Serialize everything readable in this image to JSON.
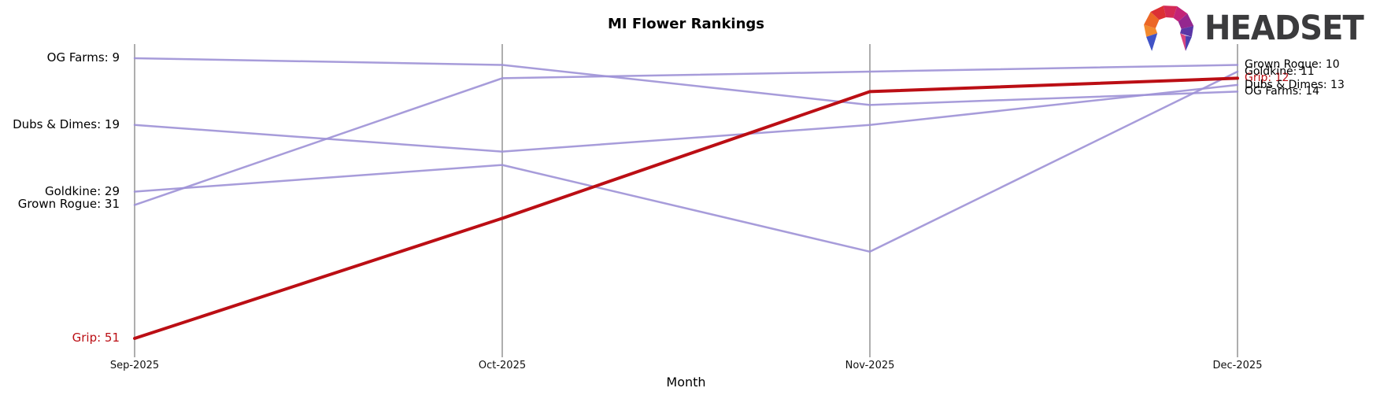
{
  "header": {
    "title": "MI Flower Rankings",
    "xlabel": "Month"
  },
  "logo": {
    "text": "HEADSET"
  },
  "colors": {
    "purple_line": "#9d91d6",
    "highlight_red": "#bb0e14",
    "axis_gray": "#aeaeae",
    "text_black": "#000000",
    "logo_text_gray": "#3b3b3d"
  },
  "chart_data": {
    "type": "line",
    "subtype": "bump-ranking",
    "title": "MI Flower Rankings",
    "xlabel": "Month",
    "categories": [
      "Sep-2025",
      "Oct-2025",
      "Nov-2025",
      "Dec-2025"
    ],
    "y_axis_meaning": "sales rank, lower number = higher position (axis inverted, no y ticks drawn)",
    "ylim": [
      9,
      51
    ],
    "grid": "vertical month spines only",
    "legend_position": "inline endpoint labels",
    "series": [
      {
        "name": "OG Farms",
        "values": [
          9,
          10,
          16,
          14
        ],
        "color": "#9d91d6",
        "highlight": false
      },
      {
        "name": "Dubs & Dimes",
        "values": [
          19,
          23,
          19,
          13
        ],
        "color": "#9d91d6",
        "highlight": false
      },
      {
        "name": "Goldkine",
        "values": [
          29,
          25,
          38,
          11
        ],
        "color": "#9d91d6",
        "highlight": false
      },
      {
        "name": "Grown Rogue",
        "values": [
          31,
          12,
          11,
          10
        ],
        "color": "#9d91d6",
        "highlight": false
      },
      {
        "name": "Grip",
        "values": [
          51,
          33,
          14,
          12
        ],
        "color": "#bb0e14",
        "highlight": true
      }
    ],
    "start_labels": [
      {
        "text": "OG Farms: 9",
        "rank": 9,
        "color": "#000000"
      },
      {
        "text": "Dubs & Dimes: 19",
        "rank": 19,
        "color": "#000000"
      },
      {
        "text": "Goldkine: 29",
        "rank": 29,
        "color": "#000000"
      },
      {
        "text": "Grown Rogue: 31",
        "rank": 31,
        "color": "#000000"
      },
      {
        "text": "Grip: 51",
        "rank": 51,
        "color": "#bb0e14"
      }
    ],
    "end_labels": [
      {
        "text": "Grown Rogue: 10",
        "rank": 10,
        "color": "#000000"
      },
      {
        "text": "Goldkine: 11",
        "rank": 11,
        "color": "#000000"
      },
      {
        "text": "Grip: 12",
        "rank": 12,
        "color": "#bb0e14"
      },
      {
        "text": "Dubs & Dimes: 13",
        "rank": 13,
        "color": "#000000"
      },
      {
        "text": "OG Farms: 14",
        "rank": 14,
        "color": "#000000"
      }
    ]
  }
}
